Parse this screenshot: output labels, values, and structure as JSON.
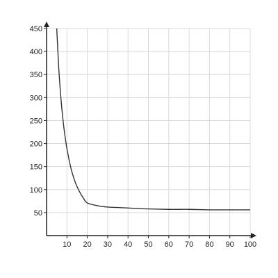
{
  "chart_data": {
    "type": "line",
    "title": "",
    "xlabel": "",
    "ylabel": "",
    "xlim": [
      0,
      100
    ],
    "ylim": [
      0,
      450
    ],
    "x_ticks": [
      10,
      20,
      30,
      40,
      50,
      60,
      70,
      80,
      90,
      100
    ],
    "y_ticks": [
      50,
      100,
      150,
      200,
      250,
      300,
      350,
      400,
      450
    ],
    "grid": true,
    "legend": "none",
    "series": [
      {
        "x": [
          5,
          6,
          7,
          8,
          9,
          10,
          12,
          14,
          16,
          18,
          20,
          25,
          30,
          35,
          40,
          50,
          60,
          70,
          80,
          90,
          100
        ],
        "y": [
          450,
          363,
          301,
          254,
          218,
          189,
          146,
          117,
          97,
          82,
          71,
          65,
          62,
          61,
          60,
          58,
          57,
          57,
          56,
          56,
          56
        ]
      }
    ],
    "colors": {
      "line": "#333333",
      "axis": "#222222",
      "grid": "#d9d9d9"
    }
  }
}
